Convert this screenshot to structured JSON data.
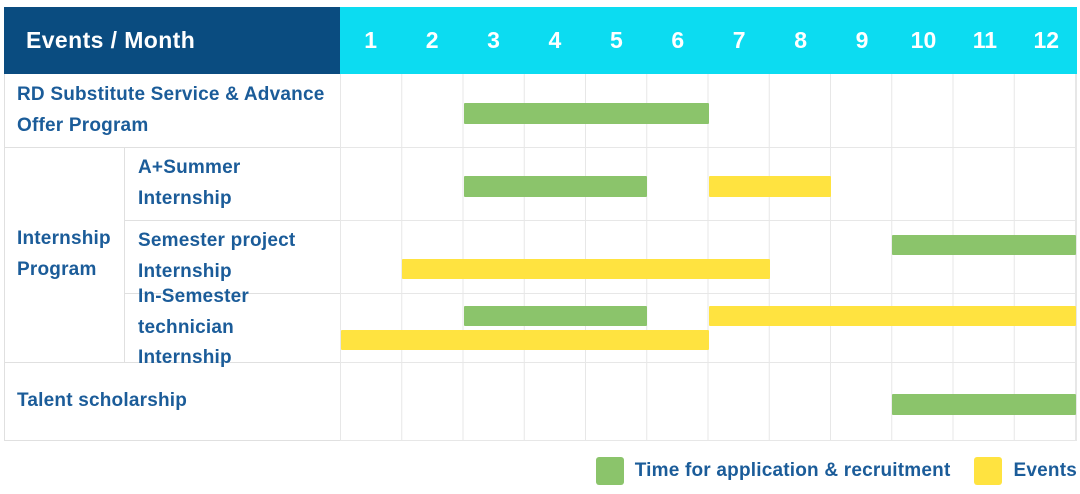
{
  "colors": {
    "navy": "#0A4C80",
    "cyan": "#0CDCF1",
    "green": "#8BC46B",
    "yellow": "#FFE340",
    "text_blue": "#1B5C99",
    "grid_line": "#E7E7E7",
    "border": "#E0E0E0"
  },
  "table": {
    "corner_title": "Events / Month",
    "months": [
      "1",
      "2",
      "3",
      "4",
      "5",
      "6",
      "7",
      "8",
      "9",
      "10",
      "11",
      "12"
    ],
    "row_rd_label": "RD Substitute Service & Advance Offer Program",
    "group_internship_label": "Internship Program",
    "sub_a_summer": "A+Summer Internship",
    "sub_semester_project": "Semester project Internship",
    "sub_in_semester": "In-Semester technician Internship",
    "row_talent_label": "Talent scholarship"
  },
  "legend": {
    "items": [
      {
        "label": "Time for application & recruitment",
        "color_key": "green"
      },
      {
        "label": "Events",
        "color_key": "yellow"
      }
    ]
  },
  "chart_data": {
    "type": "gantt",
    "title": "Events / Month",
    "x_axis": {
      "label": "Month",
      "ticks": [
        1,
        2,
        3,
        4,
        5,
        6,
        7,
        8,
        9,
        10,
        11,
        12
      ],
      "range": [
        1,
        12
      ]
    },
    "series_legend": [
      {
        "name": "Time for application & recruitment",
        "color": "#8BC46B"
      },
      {
        "name": "Events",
        "color": "#FFE340"
      }
    ],
    "rows": [
      {
        "group": null,
        "label": "RD Substitute Service & Advance Offer Program",
        "bars": [
          {
            "series": "Time for application & recruitment",
            "color": "green",
            "start_month": 3,
            "end_month": 6,
            "track": "single"
          }
        ]
      },
      {
        "group": "Internship Program",
        "label": "A+Summer Internship",
        "bars": [
          {
            "series": "Time for application & recruitment",
            "color": "green",
            "start_month": 3,
            "end_month": 5,
            "track": "single"
          },
          {
            "series": "Events",
            "color": "yellow",
            "start_month": 7,
            "end_month": 8,
            "track": "single"
          }
        ]
      },
      {
        "group": "Internship Program",
        "label": "Semester project Internship",
        "bars": [
          {
            "series": "Time for application & recruitment",
            "color": "green",
            "start_month": 10,
            "end_month": 12,
            "track": "top"
          },
          {
            "series": "Events",
            "color": "yellow",
            "start_month": 2,
            "end_month": 7,
            "track": "bottom"
          }
        ]
      },
      {
        "group": "Internship Program",
        "label": "In-Semester technician Internship",
        "bars": [
          {
            "series": "Time for application & recruitment",
            "color": "green",
            "start_month": 3,
            "end_month": 5,
            "track": "top"
          },
          {
            "series": "Events",
            "color": "yellow",
            "start_month": 7,
            "end_month": 12,
            "track": "top"
          },
          {
            "series": "Events",
            "color": "yellow",
            "start_month": 1,
            "end_month": 6,
            "track": "bottom"
          }
        ]
      },
      {
        "group": null,
        "label": "Talent scholarship",
        "bars": [
          {
            "series": "Time for application & recruitment",
            "color": "green",
            "start_month": 10,
            "end_month": 12,
            "track": "single"
          }
        ]
      }
    ]
  }
}
